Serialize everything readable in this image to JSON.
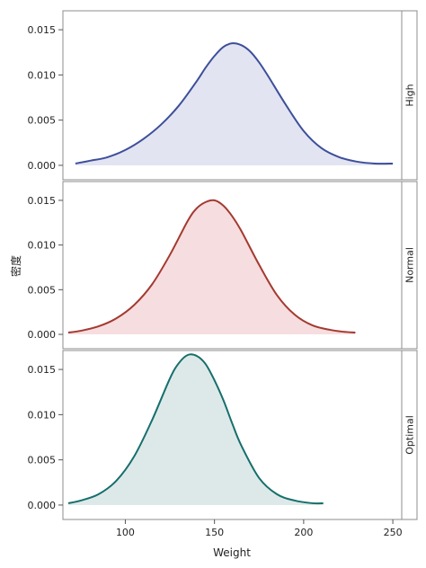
{
  "chart_data": {
    "type": "area",
    "xlabel": "Weight",
    "ylabel": "密度",
    "xlim": [
      65,
      255
    ],
    "ylim": [
      -0.0008,
      0.0165
    ],
    "x_ticks": [
      100,
      150,
      200,
      250
    ],
    "y_ticks": [
      0.0,
      0.005,
      0.01,
      0.015
    ],
    "y_tick_labels": [
      "0.000",
      "0.005",
      "0.010",
      "0.015"
    ],
    "grid": false,
    "panels": [
      {
        "label": "High",
        "line_color": "#3d4f9a",
        "fill_color": "#e2e4f1",
        "x": [
          72,
          80,
          90,
          100,
          110,
          120,
          130,
          140,
          145,
          150,
          155,
          160,
          165,
          170,
          175,
          180,
          190,
          200,
          210,
          220,
          230,
          240,
          250
        ],
        "y": [
          0.0002,
          0.0005,
          0.0009,
          0.0017,
          0.0029,
          0.0045,
          0.0066,
          0.0093,
          0.0108,
          0.0121,
          0.0131,
          0.0135,
          0.0133,
          0.0126,
          0.0114,
          0.0099,
          0.0067,
          0.0038,
          0.0019,
          0.0009,
          0.0004,
          0.0002,
          0.0002
        ]
      },
      {
        "label": "Normal",
        "line_color": "#a33a30",
        "fill_color": "#f6dddf",
        "x": [
          68,
          75,
          85,
          95,
          105,
          115,
          125,
          135,
          140,
          145,
          150,
          155,
          160,
          165,
          175,
          185,
          195,
          205,
          215,
          222,
          229
        ],
        "y": [
          0.0002,
          0.0004,
          0.0009,
          0.0018,
          0.0033,
          0.0056,
          0.0089,
          0.0127,
          0.0141,
          0.0148,
          0.015,
          0.0144,
          0.0132,
          0.0116,
          0.0078,
          0.0044,
          0.0022,
          0.001,
          0.0005,
          0.0003,
          0.0002
        ]
      },
      {
        "label": "Optimal",
        "line_color": "#166e6c",
        "fill_color": "#dde9e8",
        "x": [
          68,
          75,
          85,
          95,
          105,
          115,
          125,
          130,
          135,
          140,
          145,
          150,
          155,
          160,
          165,
          175,
          185,
          195,
          205,
          211
        ],
        "y": [
          0.0002,
          0.0005,
          0.0012,
          0.0027,
          0.0054,
          0.0094,
          0.014,
          0.0157,
          0.0166,
          0.0165,
          0.0156,
          0.0138,
          0.0116,
          0.009,
          0.0066,
          0.003,
          0.0012,
          0.0005,
          0.0002,
          0.0002
        ]
      }
    ]
  }
}
